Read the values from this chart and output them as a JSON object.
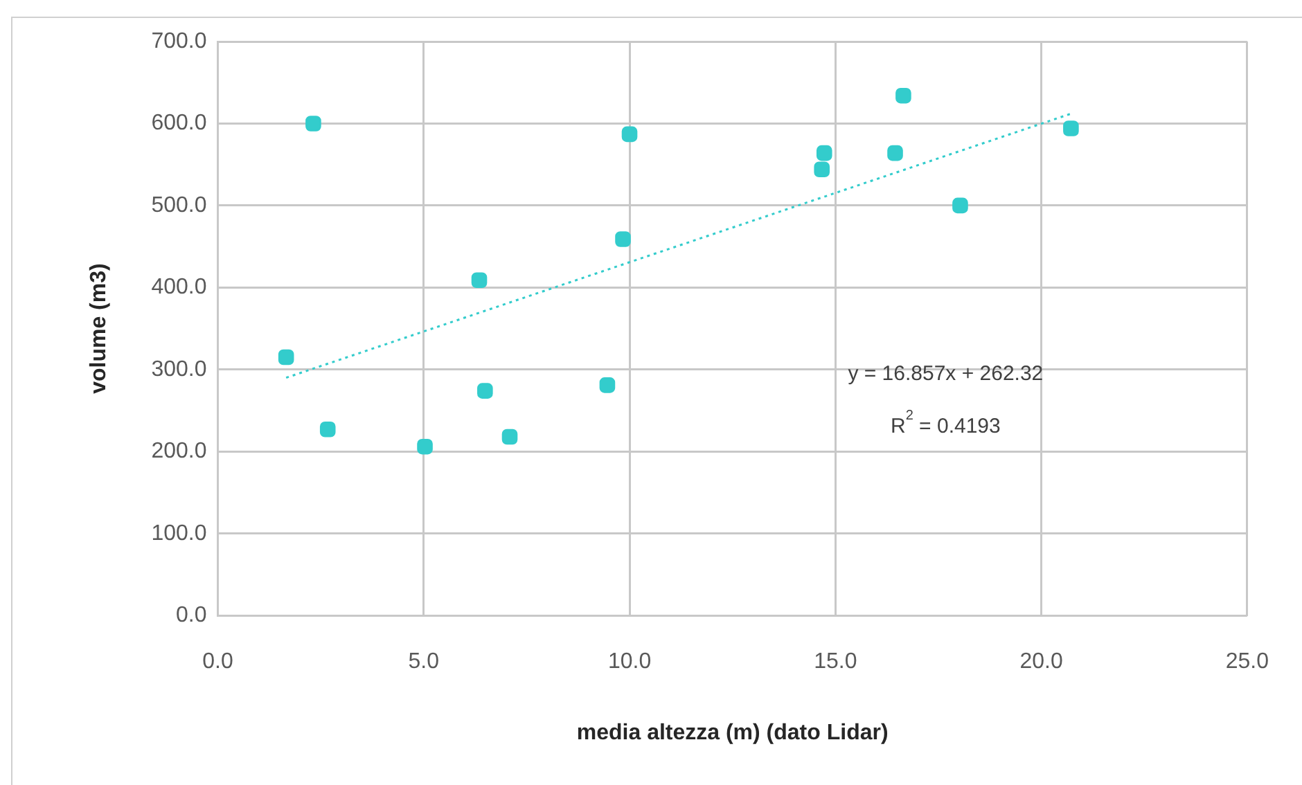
{
  "chart_data": {
    "type": "scatter",
    "xlabel": "media altezza (m) (dato Lidar)",
    "ylabel": "volume (m3)",
    "xlim": [
      0,
      25
    ],
    "xticks": [
      {
        "value": 0,
        "label": "0.0"
      },
      {
        "value": 5,
        "label": "5.0"
      },
      {
        "value": 10,
        "label": "10.0"
      },
      {
        "value": 15,
        "label": "15.0"
      },
      {
        "value": 20,
        "label": "20.0"
      },
      {
        "value": 25,
        "label": "25.0"
      }
    ],
    "ylim": [
      0,
      700
    ],
    "yticks": [
      {
        "value": 0,
        "label": "0.0"
      },
      {
        "value": 100,
        "label": "100.0"
      },
      {
        "value": 200,
        "label": "200.0"
      },
      {
        "value": 300,
        "label": "300.0"
      },
      {
        "value": 400,
        "label": "400.0"
      },
      {
        "value": 500,
        "label": "500.0"
      },
      {
        "value": 600,
        "label": "600.0"
      },
      {
        "value": 700,
        "label": "700.0"
      }
    ],
    "grid": true,
    "legend": false,
    "marker": "square",
    "series": [
      {
        "type": "scatter",
        "color": "#33cccc",
        "x": [
          1.66,
          2.32,
          2.67,
          5.03,
          6.35,
          6.49,
          7.09,
          9.46,
          9.84,
          10.0,
          14.67,
          14.73,
          16.45,
          16.65,
          18.03,
          20.72
        ],
        "values": [
          315,
          600,
          227,
          206,
          409,
          274,
          218,
          281,
          459,
          587,
          544,
          564,
          564,
          634,
          500,
          594
        ]
      },
      {
        "type": "line",
        "color": "#33cccc",
        "line_style": "dotted",
        "marker": "none",
        "x": [
          1.66,
          20.72
        ],
        "values": [
          290,
          612
        ]
      }
    ],
    "annotations": [
      "y = 16.857x + 262.32",
      "R$^{2}$ = 0.4193"
    ]
  }
}
